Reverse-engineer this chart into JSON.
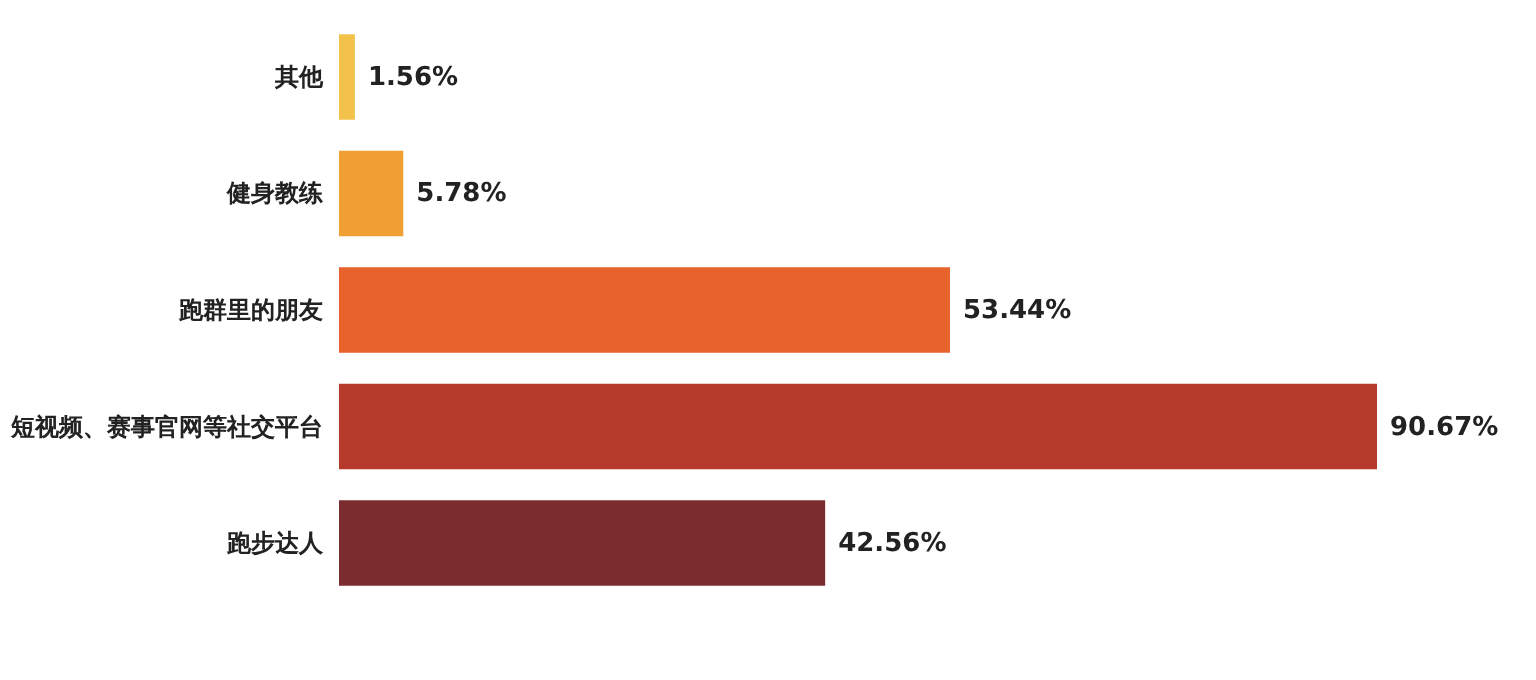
{
  "chart_data": {
    "type": "bar",
    "orientation": "horizontal",
    "categories": [
      "其他",
      "健身教练",
      "跑群里的朋友",
      "短视频、赛事官网等社交平台",
      "跑步达人"
    ],
    "values": [
      1.56,
      5.78,
      53.44,
      90.67,
      42.56
    ],
    "value_labels": [
      "1.56%",
      "5.78%",
      "53.44%",
      "90.67%",
      "42.56%"
    ],
    "colors": [
      "#f2c24a",
      "#f0a033",
      "#e8622c",
      "#b53a2b",
      "#7b2c2e"
    ],
    "grid": false
  }
}
